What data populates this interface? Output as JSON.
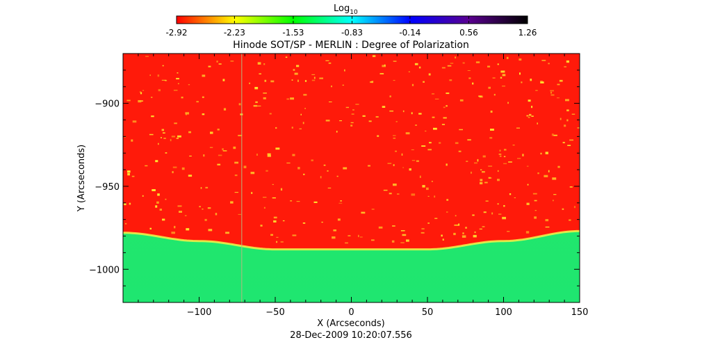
{
  "chart_data": {
    "type": "heatmap",
    "title": "Hinode SOT/SP - MERLIN : Degree of Polarization",
    "xlabel": "X (Arcseconds)",
    "ylabel": "Y (Arcseconds)",
    "timestamp": "28-Dec-2009 10:20:07.556",
    "xlim": [
      -150,
      150
    ],
    "ylim": [
      -1020,
      -870
    ],
    "x_ticks": [
      -100,
      -50,
      0,
      50,
      100,
      150
    ],
    "y_ticks": [
      -1000,
      -950,
      -900
    ],
    "colorbar": {
      "label_base": "Log",
      "label_sub": "10",
      "range": [
        -2.92,
        1.26
      ],
      "tick_values": [
        -2.92,
        -2.23,
        -1.53,
        -0.83,
        -0.14,
        0.56,
        1.26
      ],
      "tick_labels": [
        "-2.92",
        "-2.23",
        "-1.53",
        "-0.83",
        "-0.14",
        "0.56",
        "1.26"
      ],
      "colors": [
        "#ff0000",
        "#ffff00",
        "#00ff00",
        "#00ffff",
        "#0000ff",
        "#5a0090",
        "#000000"
      ]
    },
    "limb_curve_y": [
      -978,
      -983,
      -988,
      -988,
      -983,
      -977
    ],
    "limb_curve_x": [
      -150,
      -100,
      -50,
      50,
      100,
      150
    ],
    "vertical_line_x": -72,
    "disk_color": "#ff1a0a",
    "offlimb_color": "#22e868",
    "limb_edge_color": "#f3f54a",
    "feature_color": "#ffea30"
  }
}
